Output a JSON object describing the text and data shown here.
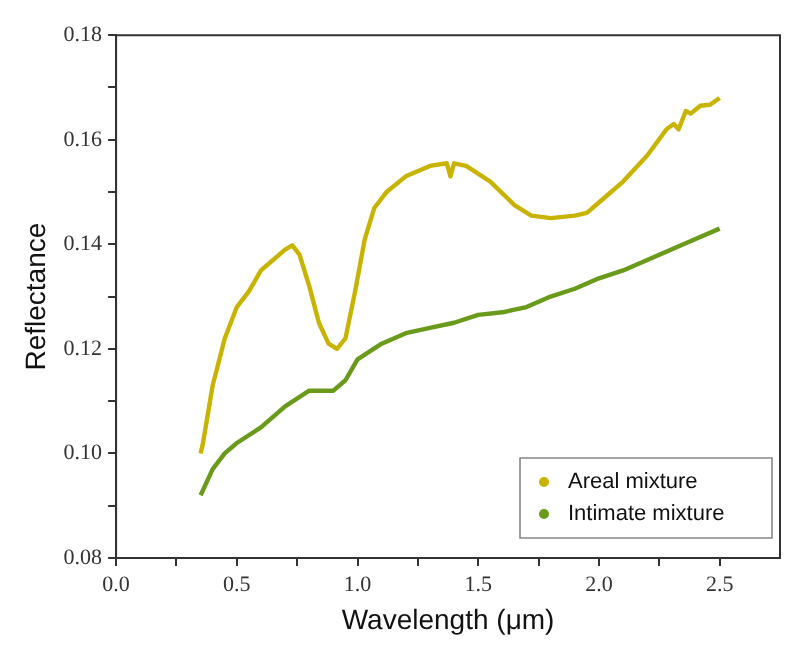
{
  "chart_data": {
    "type": "line",
    "xlabel": "Wavelength (μm)",
    "ylabel": "Reflectance",
    "xlim": [
      0,
      2.75
    ],
    "xticks": [
      {
        "value": 0,
        "label": "0.0"
      },
      {
        "value": 0.25,
        "label": null
      },
      {
        "value": 0.5,
        "label": "0.5"
      },
      {
        "value": 0.75,
        "label": null
      },
      {
        "value": 1,
        "label": "1.0"
      },
      {
        "value": 1.25,
        "label": null
      },
      {
        "value": 1.5,
        "label": "1.5"
      },
      {
        "value": 1.75,
        "label": null
      },
      {
        "value": 2,
        "label": "2.0"
      },
      {
        "value": 2.25,
        "label": null
      },
      {
        "value": 2.5,
        "label": "2.5"
      }
    ],
    "ylim": [
      0.08,
      0.18
    ],
    "yticks": [
      0.08,
      {
        "value": 0.09,
        "label": null
      },
      {
        "value": 0.1,
        "label": "0.10"
      },
      {
        "value": 0.11,
        "label": null
      },
      0.12,
      {
        "value": 0.13,
        "label": null
      },
      0.14,
      {
        "value": 0.15,
        "label": null
      },
      0.16,
      {
        "value": 0.17,
        "label": null
      },
      0.18
    ],
    "grid": false,
    "legend": "bottom right",
    "line_style": "solid",
    "series": [
      {
        "name": "Areal mixture",
        "color": "#c8b400",
        "x": [
          0.35,
          0.36,
          0.4,
          0.45,
          0.5,
          0.55,
          0.6,
          0.65,
          0.7,
          0.73,
          0.76,
          0.8,
          0.84,
          0.88,
          0.915,
          0.95,
          0.99,
          1.03,
          1.07,
          1.12,
          1.2,
          1.3,
          1.37,
          1.385,
          1.4,
          1.45,
          1.55,
          1.65,
          1.72,
          1.8,
          1.9,
          1.95,
          2.0,
          2.1,
          2.2,
          2.28,
          2.31,
          2.33,
          2.36,
          2.38,
          2.42,
          2.46,
          2.5
        ],
        "values": [
          0.1,
          0.102,
          0.113,
          0.122,
          0.128,
          0.131,
          0.135,
          0.137,
          0.139,
          0.1398,
          0.138,
          0.132,
          0.125,
          0.121,
          0.12,
          0.122,
          0.131,
          0.141,
          0.147,
          0.15,
          0.153,
          0.155,
          0.1555,
          0.153,
          0.1555,
          0.155,
          0.152,
          0.1475,
          0.1455,
          0.145,
          0.1455,
          0.146,
          0.148,
          0.152,
          0.157,
          0.162,
          0.163,
          0.162,
          0.1655,
          0.165,
          0.1665,
          0.1667,
          0.168
        ]
      },
      {
        "name": "Intimate mixture",
        "color": "#6a9a1a",
        "x": [
          0.35,
          0.37,
          0.4,
          0.45,
          0.5,
          0.6,
          0.7,
          0.8,
          0.9,
          0.95,
          1.0,
          1.1,
          1.2,
          1.3,
          1.4,
          1.5,
          1.6,
          1.7,
          1.8,
          1.9,
          2.0,
          2.1,
          2.2,
          2.3,
          2.4,
          2.5
        ],
        "values": [
          0.092,
          0.094,
          0.097,
          0.1,
          0.102,
          0.105,
          0.109,
          0.112,
          0.112,
          0.114,
          0.118,
          0.121,
          0.123,
          0.124,
          0.125,
          0.1265,
          0.127,
          0.128,
          0.13,
          0.1315,
          0.1335,
          0.135,
          0.137,
          0.139,
          0.141,
          0.143
        ]
      }
    ]
  }
}
